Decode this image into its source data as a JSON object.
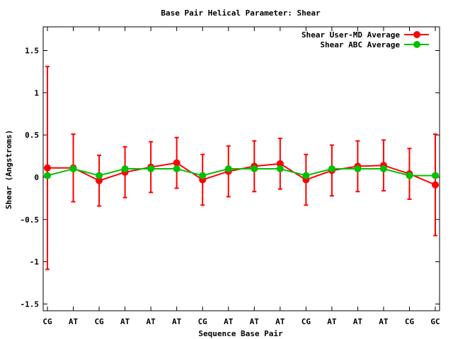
{
  "chart_data": {
    "type": "line",
    "title": "Base Pair Helical Parameter: Shear",
    "xlabel": "Sequence Base Pair",
    "ylabel": "Shear (Angstroms)",
    "categories": [
      "CG",
      "AT",
      "CG",
      "AT",
      "AT",
      "AT",
      "CG",
      "AT",
      "AT",
      "AT",
      "CG",
      "AT",
      "AT",
      "AT",
      "CG",
      "GC"
    ],
    "ylim": [
      -1.58,
      1.78
    ],
    "yticks": [
      1.5,
      1,
      0.5,
      0,
      -0.5,
      -1,
      -1.5
    ],
    "ytick_labels": [
      "1.5",
      "1",
      "0.5",
      "0",
      "-0.5",
      "-1",
      "-1.5"
    ],
    "legend_position": "top-right",
    "series": [
      {
        "name": "Shear User-MD Average",
        "color": "#ff0000",
        "values": [
          0.11,
          0.11,
          -0.04,
          0.06,
          0.12,
          0.17,
          -0.03,
          0.07,
          0.13,
          0.16,
          -0.03,
          0.08,
          0.13,
          0.14,
          0.04,
          -0.09
        ],
        "error": [
          1.2,
          0.4,
          0.3,
          0.3,
          0.3,
          0.3,
          0.3,
          0.3,
          0.3,
          0.3,
          0.3,
          0.3,
          0.3,
          0.3,
          0.3,
          0.6
        ]
      },
      {
        "name": "Shear ABC Average",
        "color": "#00c000",
        "values": [
          0.02,
          0.1,
          0.02,
          0.1,
          0.1,
          0.1,
          0.02,
          0.1,
          0.1,
          0.1,
          0.02,
          0.1,
          0.1,
          0.1,
          0.02,
          0.02
        ]
      }
    ]
  }
}
